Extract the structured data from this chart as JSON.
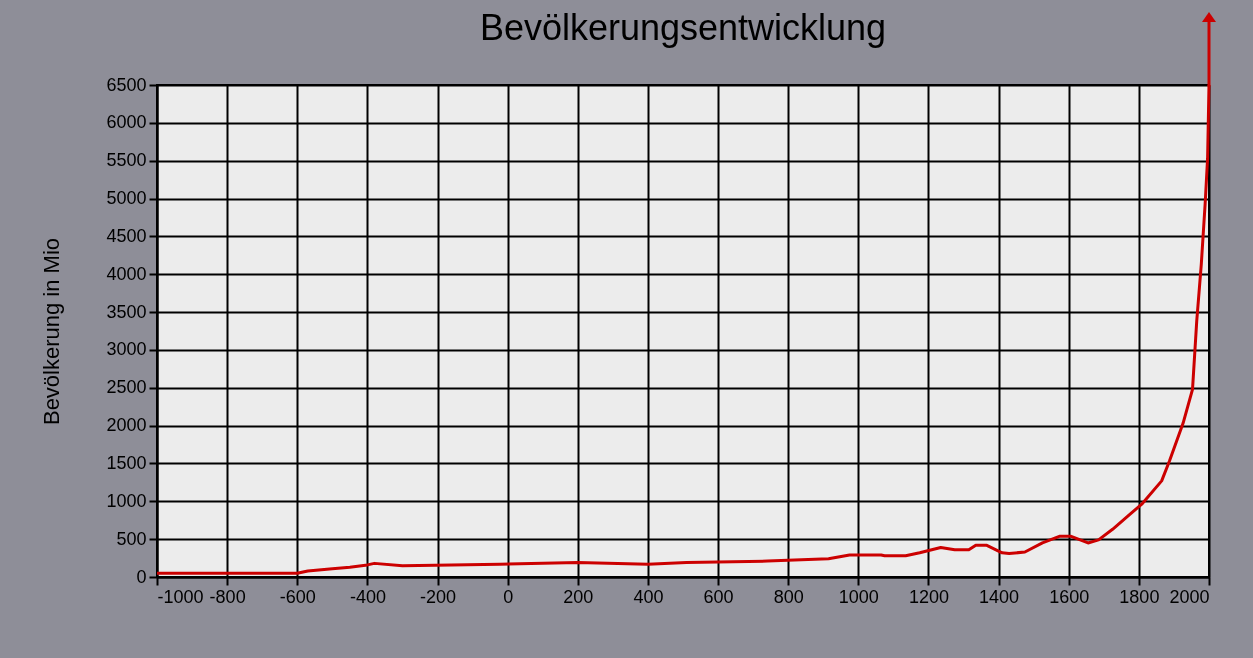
{
  "chart_data": {
    "type": "line",
    "title": "Bevölkerungsentwicklung",
    "ylabel": "Bevölkerung in Mio",
    "x": [
      -1000,
      -600,
      -570,
      -500,
      -450,
      -400,
      -380,
      -300,
      -22,
      200,
      400,
      510,
      741,
      915,
      975,
      1065,
      1075,
      1135,
      1175,
      1235,
      1275,
      1315,
      1335,
      1365,
      1410,
      1430,
      1475,
      1525,
      1575,
      1605,
      1655,
      1685,
      1725,
      1775,
      1810,
      1865,
      1887,
      1926,
      1953,
      1965,
      1978,
      1989,
      1996,
      2000
    ],
    "series": [
      {
        "color": "#cc0000",
        "values": [
          50,
          50,
          80,
          110,
          130,
          160,
          180,
          150,
          170,
          190,
          170,
          190,
          210,
          240,
          290,
          290,
          280,
          280,
          320,
          390,
          360,
          360,
          420,
          420,
          320,
          310,
          330,
          450,
          540,
          540,
          450,
          490,
          630,
          830,
          970,
          1270,
          1530,
          2030,
          2480,
          3380,
          4130,
          4930,
          5530,
          6500
        ]
      }
    ],
    "xlim": [
      -1000,
      2000
    ],
    "xticks": [
      -1000,
      -800,
      -600,
      -400,
      -200,
      0,
      200,
      400,
      600,
      800,
      1000,
      1200,
      1400,
      1600,
      1800,
      2000
    ],
    "ylim": [
      0,
      6500
    ],
    "yticks": [
      0,
      500,
      1000,
      1500,
      2000,
      2500,
      3000,
      3500,
      4000,
      4500,
      5000,
      5500,
      6000,
      6500
    ],
    "grid": true,
    "line_style": "solid",
    "marker": "none"
  }
}
